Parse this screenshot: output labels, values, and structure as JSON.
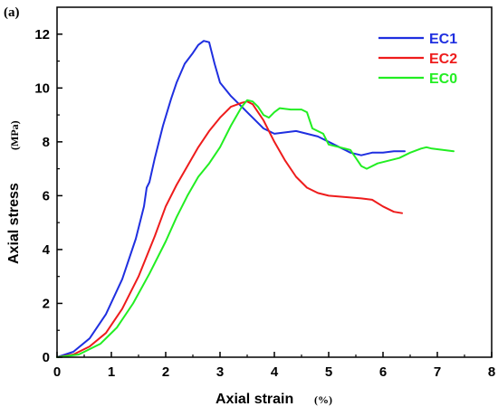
{
  "chart_data": {
    "type": "line",
    "panel_label": "(a)",
    "xlabel": "Axial strain",
    "xlabel_unit": "(%)",
    "ylabel": "Axial stress",
    "ylabel_unit": "(MPa)",
    "xlim": [
      0,
      8
    ],
    "ylim": [
      0,
      13
    ],
    "x_ticks": [
      "0",
      "1",
      "2",
      "3",
      "4",
      "5",
      "6",
      "7",
      "8"
    ],
    "y_ticks": [
      "0",
      "2",
      "4",
      "6",
      "8",
      "10",
      "12"
    ],
    "legend_position": "top-right",
    "grid": false,
    "series": [
      {
        "name": "EC1",
        "color": "#1f2fe0",
        "points": [
          [
            0,
            0
          ],
          [
            0.3,
            0.2
          ],
          [
            0.6,
            0.7
          ],
          [
            0.9,
            1.6
          ],
          [
            1.2,
            2.9
          ],
          [
            1.45,
            4.4
          ],
          [
            1.6,
            5.6
          ],
          [
            1.65,
            6.3
          ],
          [
            1.7,
            6.5
          ],
          [
            1.8,
            7.4
          ],
          [
            1.95,
            8.6
          ],
          [
            2.1,
            9.6
          ],
          [
            2.2,
            10.2
          ],
          [
            2.35,
            10.9
          ],
          [
            2.5,
            11.3
          ],
          [
            2.6,
            11.6
          ],
          [
            2.7,
            11.75
          ],
          [
            2.8,
            11.7
          ],
          [
            2.9,
            10.9
          ],
          [
            3.0,
            10.2
          ],
          [
            3.2,
            9.7
          ],
          [
            3.4,
            9.3
          ],
          [
            3.6,
            8.9
          ],
          [
            3.8,
            8.5
          ],
          [
            4.0,
            8.3
          ],
          [
            4.2,
            8.35
          ],
          [
            4.4,
            8.4
          ],
          [
            4.6,
            8.3
          ],
          [
            4.8,
            8.2
          ],
          [
            5.0,
            8.0
          ],
          [
            5.2,
            7.8
          ],
          [
            5.4,
            7.6
          ],
          [
            5.6,
            7.5
          ],
          [
            5.8,
            7.6
          ],
          [
            6.0,
            7.6
          ],
          [
            6.2,
            7.65
          ],
          [
            6.4,
            7.65
          ]
        ]
      },
      {
        "name": "EC2",
        "color": "#ee1c1c",
        "points": [
          [
            0,
            0
          ],
          [
            0.3,
            0.1
          ],
          [
            0.6,
            0.4
          ],
          [
            0.9,
            0.9
          ],
          [
            1.2,
            1.8
          ],
          [
            1.5,
            3.0
          ],
          [
            1.8,
            4.5
          ],
          [
            2.0,
            5.6
          ],
          [
            2.2,
            6.4
          ],
          [
            2.4,
            7.1
          ],
          [
            2.6,
            7.8
          ],
          [
            2.8,
            8.4
          ],
          [
            3.0,
            8.9
          ],
          [
            3.2,
            9.3
          ],
          [
            3.4,
            9.45
          ],
          [
            3.5,
            9.5
          ],
          [
            3.6,
            9.4
          ],
          [
            3.8,
            8.8
          ],
          [
            4.0,
            8.0
          ],
          [
            4.2,
            7.3
          ],
          [
            4.4,
            6.7
          ],
          [
            4.6,
            6.3
          ],
          [
            4.8,
            6.1
          ],
          [
            5.0,
            6.0
          ],
          [
            5.3,
            5.95
          ],
          [
            5.6,
            5.9
          ],
          [
            5.8,
            5.85
          ],
          [
            6.0,
            5.6
          ],
          [
            6.2,
            5.4
          ],
          [
            6.35,
            5.35
          ]
        ]
      },
      {
        "name": "EC0",
        "color": "#22ee22",
        "points": [
          [
            0,
            0
          ],
          [
            0.4,
            0.1
          ],
          [
            0.8,
            0.5
          ],
          [
            1.1,
            1.1
          ],
          [
            1.4,
            2.0
          ],
          [
            1.7,
            3.1
          ],
          [
            2.0,
            4.3
          ],
          [
            2.2,
            5.2
          ],
          [
            2.4,
            6.0
          ],
          [
            2.6,
            6.7
          ],
          [
            2.8,
            7.2
          ],
          [
            3.0,
            7.8
          ],
          [
            3.2,
            8.6
          ],
          [
            3.4,
            9.3
          ],
          [
            3.5,
            9.55
          ],
          [
            3.6,
            9.5
          ],
          [
            3.7,
            9.3
          ],
          [
            3.8,
            9.0
          ],
          [
            3.9,
            8.9
          ],
          [
            4.0,
            9.1
          ],
          [
            4.1,
            9.25
          ],
          [
            4.3,
            9.2
          ],
          [
            4.5,
            9.2
          ],
          [
            4.6,
            9.1
          ],
          [
            4.7,
            8.5
          ],
          [
            4.9,
            8.3
          ],
          [
            5.0,
            7.9
          ],
          [
            5.2,
            7.8
          ],
          [
            5.4,
            7.7
          ],
          [
            5.5,
            7.4
          ],
          [
            5.6,
            7.1
          ],
          [
            5.7,
            7.0
          ],
          [
            5.9,
            7.2
          ],
          [
            6.1,
            7.3
          ],
          [
            6.3,
            7.4
          ],
          [
            6.5,
            7.6
          ],
          [
            6.7,
            7.75
          ],
          [
            6.8,
            7.8
          ],
          [
            6.9,
            7.75
          ],
          [
            7.1,
            7.7
          ],
          [
            7.3,
            7.65
          ]
        ]
      }
    ]
  }
}
